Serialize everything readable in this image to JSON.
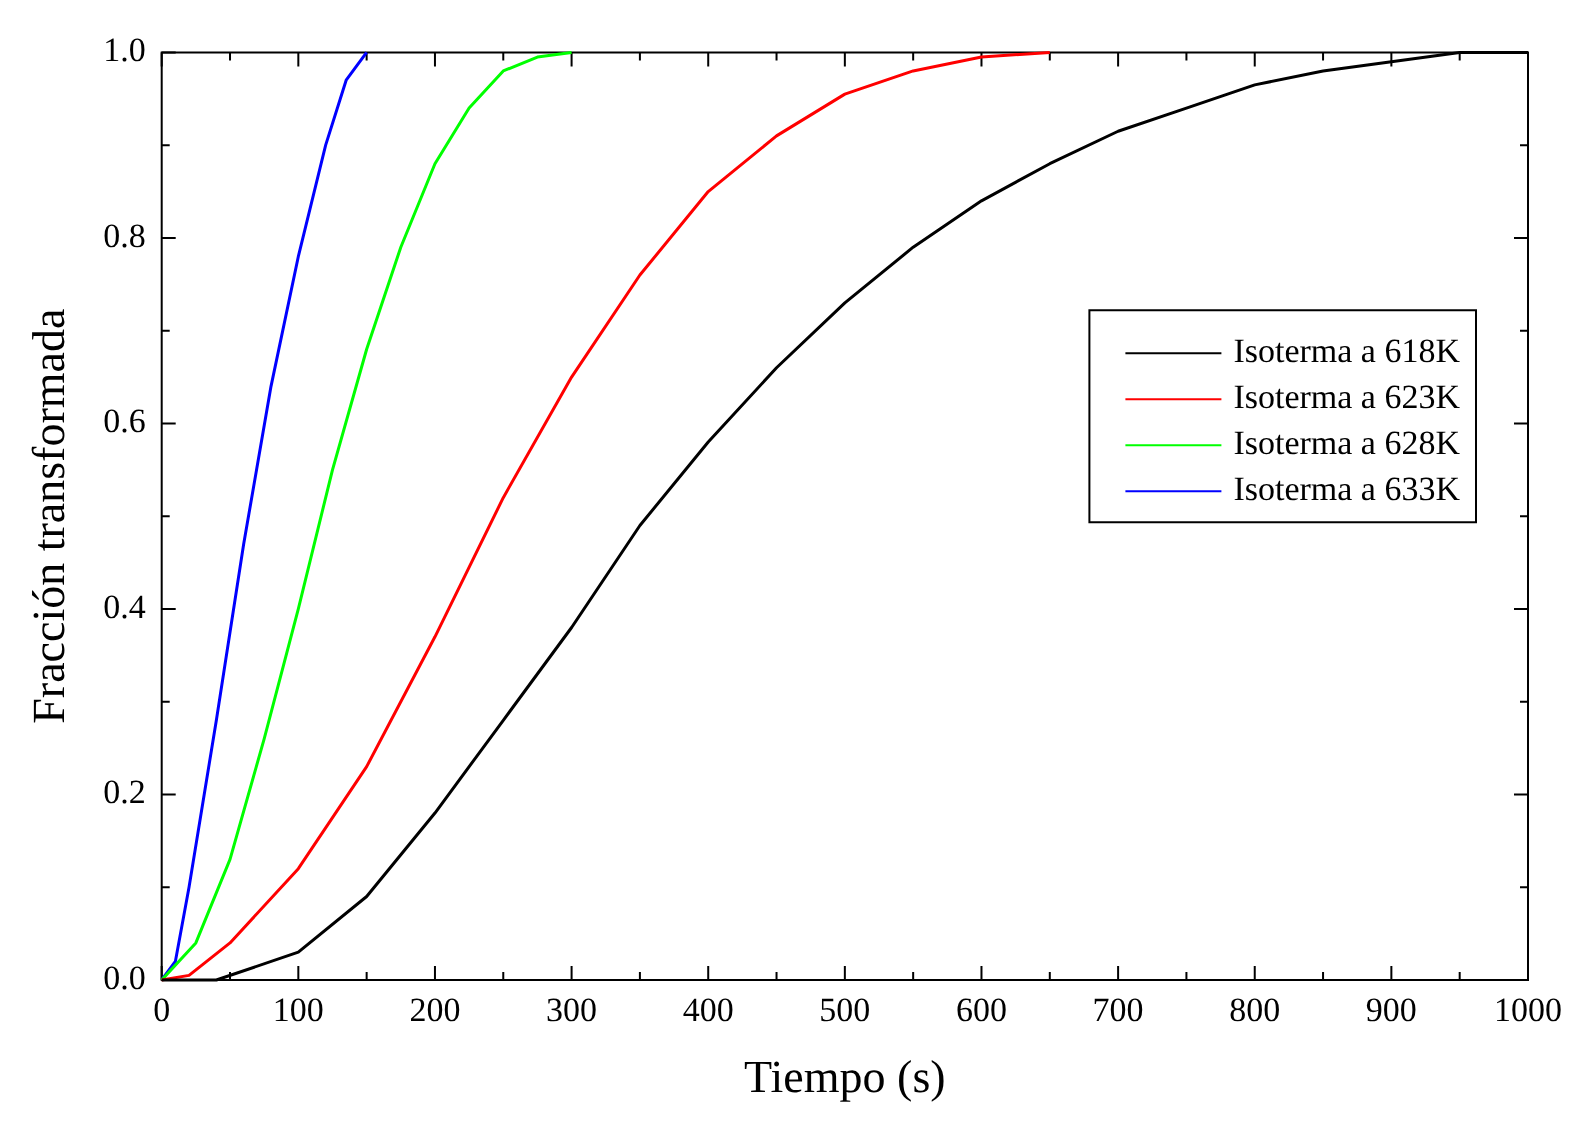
{
  "chart_data": {
    "type": "line",
    "xlabel": "Tiempo (s)",
    "ylabel": "Fracción transformada",
    "xlim": [
      0,
      1000
    ],
    "ylim": [
      0,
      1.0
    ],
    "xticks": [
      0,
      {
        "value": 50,
        "label": null
      },
      100,
      {
        "value": 150,
        "label": null
      },
      200,
      {
        "value": 250,
        "label": null
      },
      300,
      {
        "value": 350,
        "label": null
      },
      400,
      {
        "value": 450,
        "label": null
      },
      500,
      {
        "value": 550,
        "label": null
      },
      600,
      {
        "value": 650,
        "label": null
      },
      700,
      {
        "value": 750,
        "label": null
      },
      800,
      {
        "value": 850,
        "label": null
      },
      900,
      {
        "value": 950,
        "label": null
      },
      1000
    ],
    "yticks": [
      {
        "value": 0,
        "label": "0.0"
      },
      {
        "value": 0.1,
        "label": null
      },
      0.2,
      {
        "value": 0.3,
        "label": null
      },
      0.4,
      {
        "value": 0.5,
        "label": null
      },
      0.6,
      {
        "value": 0.7,
        "label": null
      },
      0.8,
      {
        "value": 0.9,
        "label": null
      },
      {
        "value": 1,
        "label": "1.0"
      }
    ],
    "grid": false,
    "legend": "right",
    "marker": "none",
    "line_style": "solid",
    "series": [
      {
        "name": "Isoterma a 618K",
        "color": "#000000",
        "x": [
          0,
          40,
          100,
          150,
          200,
          250,
          300,
          350,
          400,
          450,
          500,
          550,
          600,
          650,
          700,
          750,
          800,
          850,
          900,
          950,
          1000
        ],
        "values": [
          0,
          0,
          0.03,
          0.09,
          0.18,
          0.28,
          0.38,
          0.49,
          0.58,
          0.66,
          0.73,
          0.79,
          0.84,
          0.88,
          0.915,
          0.94,
          0.965,
          0.98,
          0.99,
          1.0,
          1.0
        ]
      },
      {
        "name": "Isoterma a 623K",
        "color": "#ff0000",
        "x": [
          0,
          20,
          50,
          100,
          150,
          200,
          250,
          300,
          350,
          400,
          450,
          500,
          550,
          600,
          650
        ],
        "values": [
          0,
          0.005,
          0.04,
          0.12,
          0.23,
          0.37,
          0.52,
          0.65,
          0.76,
          0.85,
          0.91,
          0.955,
          0.98,
          0.995,
          1.0
        ]
      },
      {
        "name": "Isoterma a 628K",
        "color": "#00ff00",
        "x": [
          0,
          25,
          50,
          75,
          100,
          125,
          150,
          175,
          200,
          225,
          250,
          275,
          300
        ],
        "values": [
          0,
          0.04,
          0.13,
          0.26,
          0.4,
          0.55,
          0.68,
          0.79,
          0.88,
          0.94,
          0.98,
          0.995,
          1.0
        ]
      },
      {
        "name": "Isoterma a 633K",
        "color": "#0000ff",
        "x": [
          0,
          10,
          20,
          40,
          60,
          80,
          100,
          120,
          135,
          150
        ],
        "values": [
          0,
          0.02,
          0.1,
          0.28,
          0.47,
          0.64,
          0.78,
          0.9,
          0.97,
          1.0
        ]
      }
    ]
  }
}
